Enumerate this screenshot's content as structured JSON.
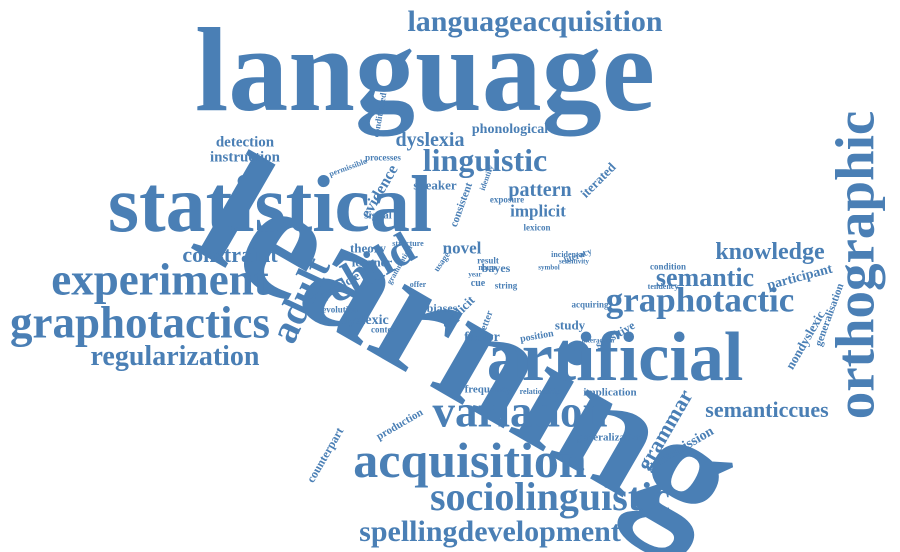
{
  "colors": {
    "word": "#4a7fb5",
    "background": "#ffffff"
  },
  "words": [
    "language",
    "learning",
    "statistical",
    "orthographic",
    "artificial",
    "languageacquisition",
    "acquisition",
    "variation",
    "sociolinguistic",
    "spellingdevelopment",
    "experiment",
    "graphotactics",
    "regularization",
    "graphotactic",
    "child",
    "adult",
    "linguistic",
    "knowledge",
    "semantic",
    "semanticcues",
    "constraint",
    "grammar",
    "dyslexia",
    "phonological",
    "detection",
    "instruction",
    "pattern",
    "implicit",
    "novel",
    "theory",
    "learner",
    "particle",
    "evidence",
    "speaker",
    "dyslexic",
    "biases",
    "explicit",
    "factor",
    "frequency",
    "implication",
    "generalization",
    "transmission",
    "production",
    "counterpart",
    "participant",
    "nondyslexic",
    "generalisation",
    "study",
    "sensitive",
    "iterated",
    "consistent",
    "signal",
    "processes",
    "exposure",
    "lexicon",
    "string",
    "bayes",
    "result",
    "noun",
    "cue",
    "year",
    "context",
    "evolution",
    "conditioned",
    "identity",
    "permissible",
    "condition",
    "tendency",
    "acquiring",
    "interaction",
    "position",
    "letter",
    "relationship",
    "incidental",
    "sensitivity",
    "literacy",
    "structure",
    "grammatical",
    "usage",
    "offer",
    "symbol"
  ]
}
